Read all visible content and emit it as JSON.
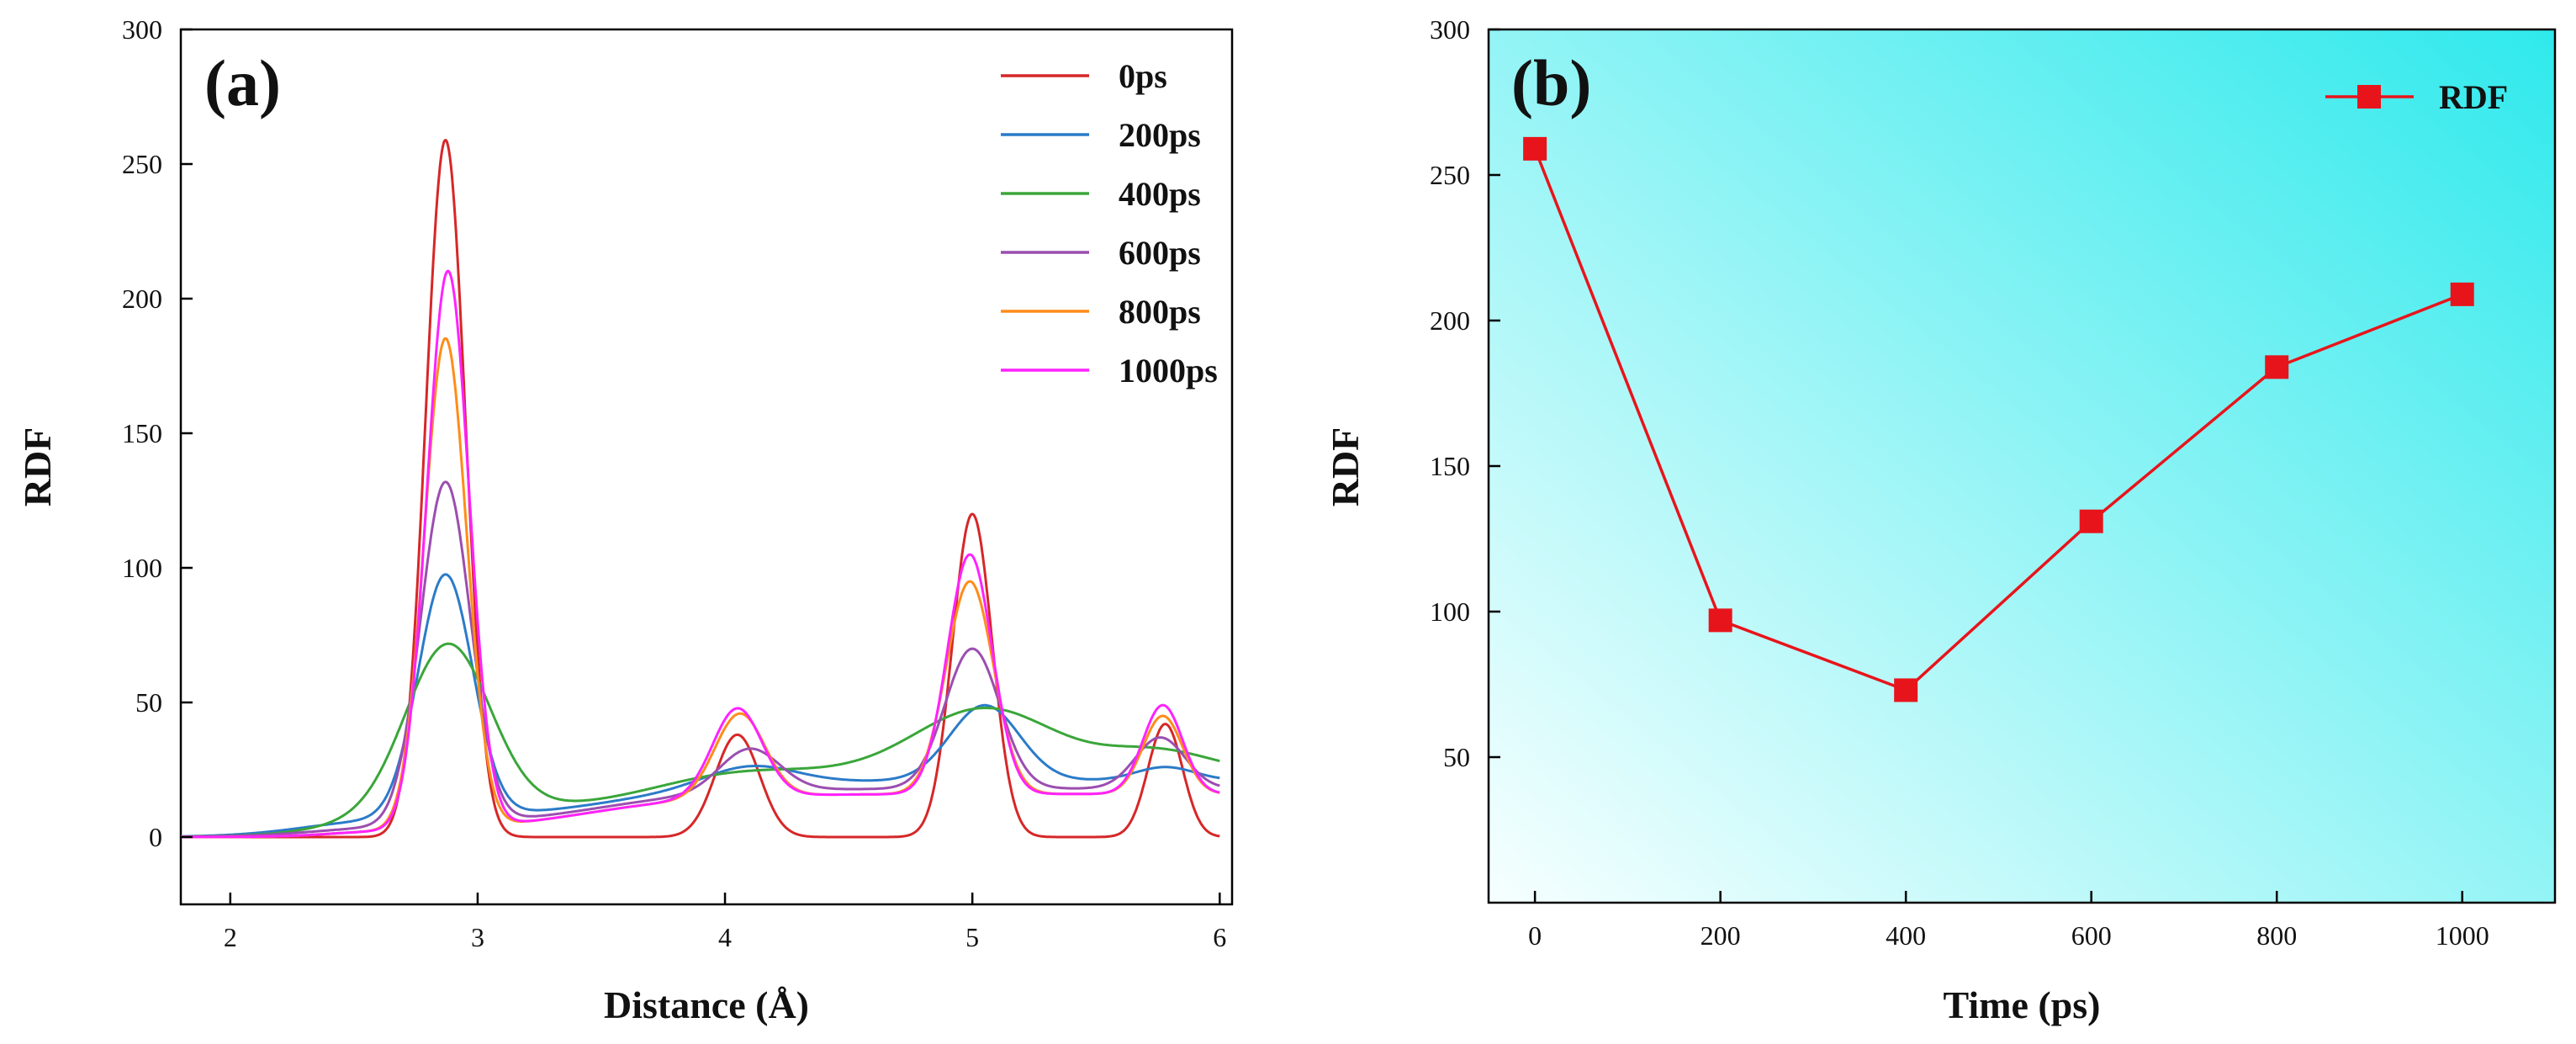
{
  "chart_data": [
    {
      "type": "line",
      "panel_label": "(a)",
      "xlabel": "Distance (Å)",
      "ylabel": "RDF",
      "xlim": [
        1.8,
        6.05
      ],
      "ylim": [
        -25,
        300
      ],
      "xticks": [
        2,
        3,
        4,
        5,
        6
      ],
      "yticks": [
        0,
        50,
        100,
        150,
        200,
        250,
        300
      ],
      "grid": false,
      "legend_position": "top-right",
      "series": [
        {
          "name": "0ps",
          "color": "#d62728",
          "peaks": [
            [
              2.87,
              259,
              0.08
            ],
            [
              4.05,
              38,
              0.09
            ],
            [
              5.0,
              120,
              0.08
            ],
            [
              5.78,
              42,
              0.07
            ]
          ]
        },
        {
          "name": "200ps",
          "color": "#2b7bc8",
          "baseline": {
            "start": 2.3,
            "end": 3.6,
            "level": 7,
            "width": 0.15
          },
          "peaks": [
            [
              2.87,
              90,
              0.11
            ],
            [
              4.1,
              7,
              0.18
            ],
            [
              5.05,
              28,
              0.14
            ],
            [
              5.78,
              5,
              0.12
            ]
          ]
        },
        {
          "name": "400ps",
          "color": "#3aa63a",
          "baseline": {
            "start": 2.45,
            "end": 3.8,
            "level": 10,
            "width": 0.15
          },
          "peaks": [
            [
              2.88,
              62,
              0.17
            ],
            [
              4.0,
              4,
              0.3
            ],
            [
              5.05,
              24,
              0.28
            ],
            [
              5.75,
              8,
              0.22
            ]
          ]
        },
        {
          "name": "600ps",
          "color": "#9b4eb0",
          "baseline": {
            "start": 2.35,
            "end": 3.5,
            "level": 4,
            "width": 0.15
          },
          "peaks": [
            [
              2.87,
              127,
              0.1
            ],
            [
              4.1,
              16,
              0.12
            ],
            [
              5.0,
              52,
              0.11
            ],
            [
              5.76,
              19,
              0.1
            ]
          ]
        },
        {
          "name": "800ps",
          "color": "#ff8c1a",
          "baseline": {
            "start": 2.4,
            "end": 3.45,
            "level": 2,
            "width": 0.1
          },
          "peaks": [
            [
              2.87,
              182,
              0.085
            ],
            [
              4.06,
              31,
              0.1
            ],
            [
              4.99,
              79,
              0.095
            ],
            [
              5.77,
              29,
              0.08
            ]
          ]
        },
        {
          "name": "1000ps",
          "color": "#ff22ff",
          "baseline": {
            "start": 2.4,
            "end": 3.45,
            "level": 2,
            "width": 0.1
          },
          "peaks": [
            [
              2.88,
              207,
              0.085
            ],
            [
              4.05,
              33,
              0.1
            ],
            [
              4.99,
              89,
              0.09
            ],
            [
              5.77,
              33,
              0.08
            ]
          ]
        }
      ]
    },
    {
      "type": "line",
      "panel_label": "(b)",
      "xlabel": "Time (ps)",
      "ylabel": "RDF",
      "xlim": [
        -50,
        1100
      ],
      "ylim": [
        0,
        300
      ],
      "xticks": [
        0,
        200,
        400,
        600,
        800,
        1000
      ],
      "yticks": [
        50,
        100,
        150,
        200,
        250,
        300
      ],
      "grid": false,
      "legend_position": "top-right",
      "series": [
        {
          "name": "RDF",
          "color": "#e8141b",
          "marker": "square",
          "x": [
            0,
            200,
            400,
            600,
            800,
            1000
          ],
          "y": [
            259,
            97,
            73,
            131,
            184,
            209
          ]
        }
      ],
      "background_gradient": [
        "#f7ffff",
        "#2fe9ec"
      ]
    }
  ]
}
